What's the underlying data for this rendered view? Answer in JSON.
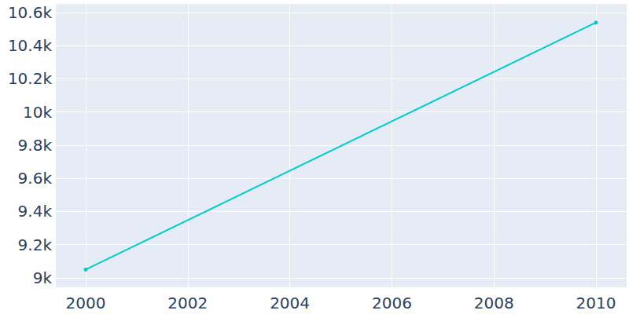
{
  "chart_data": {
    "type": "line",
    "x": [
      2000,
      2010
    ],
    "values": [
      9050,
      10540
    ],
    "color": "#00cccc",
    "marker": "circle",
    "xlim": [
      1999.4,
      2010.6
    ],
    "xticks": [
      2000,
      2002,
      2004,
      2006,
      2008,
      2010
    ],
    "ylim": [
      8943,
      10652
    ],
    "yticks": [
      {
        "value": 9000,
        "label": "9k"
      },
      {
        "value": 9200,
        "label": "9.2k"
      },
      {
        "value": 9400,
        "label": "9.4k"
      },
      {
        "value": 9600,
        "label": "9.6k"
      },
      {
        "value": 9800,
        "label": "9.8k"
      },
      {
        "value": 10000,
        "label": "10k"
      },
      {
        "value": 10200,
        "label": "10.2k"
      },
      {
        "value": 10400,
        "label": "10.4k"
      },
      {
        "value": 10600,
        "label": "10.6k"
      }
    ],
    "grid": true
  }
}
